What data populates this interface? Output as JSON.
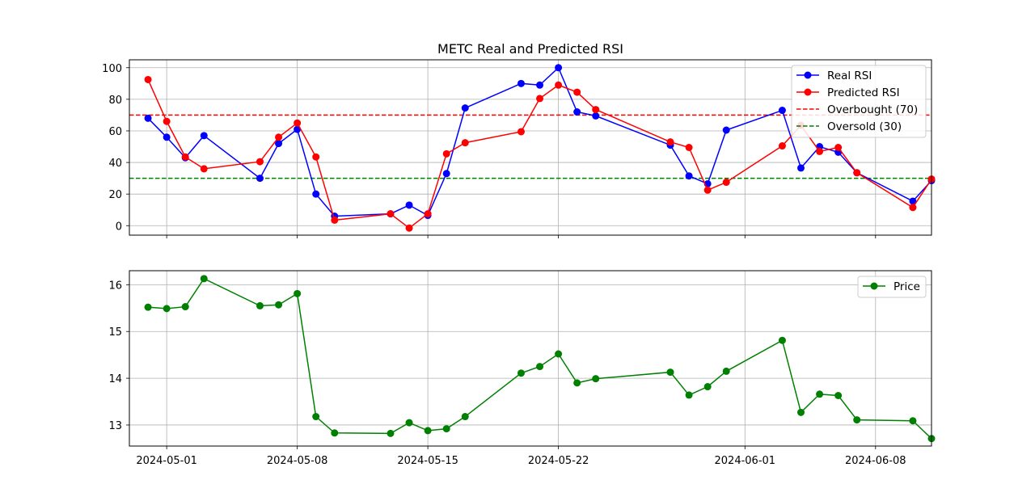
{
  "chart_data": [
    {
      "type": "line",
      "title": "METC Real and Predicted RSI",
      "xlabel": "",
      "ylabel": "",
      "ylim": [
        -6,
        105
      ],
      "yticks": [
        0,
        20,
        40,
        60,
        80,
        100
      ],
      "xlim": [
        "2024-04-29",
        "2024-06-11"
      ],
      "xticks": [
        "2024-05-01",
        "2024-05-08",
        "2024-05-15",
        "2024-05-22",
        "2024-06-01",
        "2024-06-08"
      ],
      "grid": true,
      "legend": "top-right",
      "dates": [
        "2024-04-30",
        "2024-05-01",
        "2024-05-02",
        "2024-05-03",
        "2024-05-06",
        "2024-05-07",
        "2024-05-08",
        "2024-05-09",
        "2024-05-10",
        "2024-05-13",
        "2024-05-14",
        "2024-05-15",
        "2024-05-16",
        "2024-05-17",
        "2024-05-20",
        "2024-05-21",
        "2024-05-22",
        "2024-05-23",
        "2024-05-24",
        "2024-05-28",
        "2024-05-29",
        "2024-05-30",
        "2024-05-31",
        "2024-06-03",
        "2024-06-04",
        "2024-06-05",
        "2024-06-06",
        "2024-06-07",
        "2024-06-10",
        "2024-06-11"
      ],
      "series": [
        {
          "name": "Real RSI",
          "color": "#0000ff",
          "marker": "circle",
          "values": [
            68,
            56,
            43,
            57,
            30,
            52,
            61,
            20,
            6,
            7.5,
            13,
            6.5,
            33,
            74.5,
            90,
            89,
            100,
            72,
            69.5,
            51,
            31.5,
            26.5,
            60.5,
            73,
            36.5,
            50,
            46.5,
            33.5,
            15.5,
            28.5
          ]
        },
        {
          "name": "Predicted RSI",
          "color": "#ff0000",
          "marker": "circle",
          "values": [
            92.5,
            66,
            43.5,
            36,
            40.5,
            56,
            65,
            43.5,
            3.5,
            7.5,
            -1.5,
            7.5,
            45.5,
            52.5,
            59.5,
            80.5,
            89,
            84.5,
            73.5,
            53,
            49.5,
            22.5,
            27.5,
            50.5,
            63.5,
            47,
            49.5,
            33.5,
            11.5,
            29.5
          ]
        }
      ],
      "hlines": [
        {
          "name": "Overbought (70)",
          "y": 70,
          "color": "#ff0000",
          "style": "dashed"
        },
        {
          "name": "Oversold (30)",
          "y": 30,
          "color": "#008000",
          "style": "dashed"
        }
      ]
    },
    {
      "type": "line",
      "title": "",
      "xlabel": "",
      "ylabel": "",
      "ylim": [
        12.55,
        16.3
      ],
      "yticks": [
        13,
        14,
        15,
        16
      ],
      "xlim": [
        "2024-04-29",
        "2024-06-11"
      ],
      "xticks": [
        "2024-05-01",
        "2024-05-08",
        "2024-05-15",
        "2024-05-22",
        "2024-06-01",
        "2024-06-08"
      ],
      "xticklabels": [
        "2024-05-01",
        "2024-05-08",
        "2024-05-15",
        "2024-05-22",
        "2024-06-01",
        "2024-06-08"
      ],
      "grid": true,
      "legend": "top-right",
      "dates": [
        "2024-04-30",
        "2024-05-01",
        "2024-05-02",
        "2024-05-03",
        "2024-05-06",
        "2024-05-07",
        "2024-05-08",
        "2024-05-09",
        "2024-05-10",
        "2024-05-13",
        "2024-05-14",
        "2024-05-15",
        "2024-05-16",
        "2024-05-17",
        "2024-05-20",
        "2024-05-21",
        "2024-05-22",
        "2024-05-23",
        "2024-05-24",
        "2024-05-28",
        "2024-05-29",
        "2024-05-30",
        "2024-05-31",
        "2024-06-03",
        "2024-06-04",
        "2024-06-05",
        "2024-06-06",
        "2024-06-07",
        "2024-06-10",
        "2024-06-11"
      ],
      "series": [
        {
          "name": "Price",
          "color": "#008000",
          "marker": "circle",
          "values": [
            15.52,
            15.49,
            15.53,
            16.13,
            15.55,
            15.57,
            15.81,
            13.18,
            12.83,
            12.82,
            13.05,
            12.88,
            12.92,
            13.18,
            14.11,
            14.25,
            14.52,
            13.9,
            13.99,
            14.13,
            13.64,
            13.82,
            14.15,
            14.81,
            13.27,
            13.66,
            13.63,
            13.11,
            13.09,
            12.71
          ]
        }
      ]
    }
  ]
}
